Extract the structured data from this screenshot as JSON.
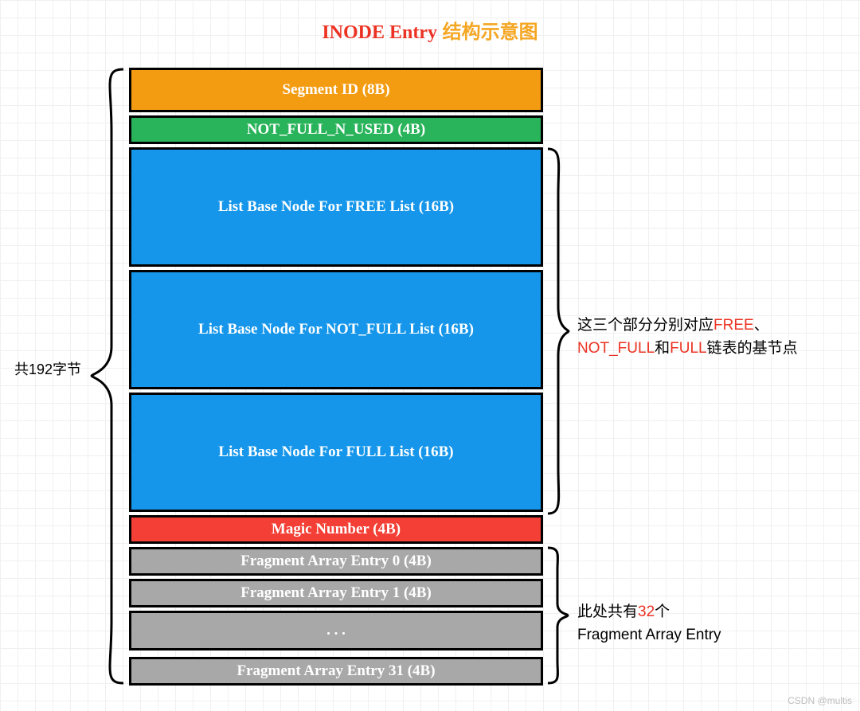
{
  "title": {
    "en": "INODE Entry",
    "cn": "结构示意图",
    "en_color": "#ec3323",
    "cn_color": "#f5a623"
  },
  "left_label": "共192字节",
  "blocks": {
    "segment_id": {
      "label": "Segment ID (8B)",
      "bg": "#f39c12",
      "h": 56
    },
    "not_full_n": {
      "label": "NOT_FULL_N_USED (4B)",
      "bg": "#29b35a",
      "h": 36
    },
    "free_list": {
      "label": "List Base Node For FREE List (16B)",
      "bg": "#1596ea",
      "h": 150
    },
    "notfull_list": {
      "label": "List Base Node For NOT_FULL List (16B)",
      "bg": "#1596ea",
      "h": 150
    },
    "full_list": {
      "label": "List Base Node For FULL List (16B)",
      "bg": "#1596ea",
      "h": 150
    },
    "magic": {
      "label": "Magic Number (4B)",
      "bg": "#f33f35",
      "h": 36
    },
    "frag0": {
      "label": "Fragment Array Entry 0 (4B)",
      "bg": "#a8a8a8",
      "h": 36
    },
    "frag1": {
      "label": "Fragment Array Entry 1 (4B)",
      "bg": "#a8a8a8",
      "h": 36
    },
    "fragdots": {
      "label": ". . .",
      "bg": "#a8a8a8",
      "h": 50
    },
    "frag31": {
      "label": "Fragment Array Entry 31 (4B)",
      "bg": "#a8a8a8",
      "h": 36
    }
  },
  "annot1": {
    "pre": "这三个部分分别对应",
    "w1": "FREE",
    "mid1": "、",
    "w2": "NOT_FULL",
    "mid2": "和",
    "w3": "FULL",
    "post": "链表的基节点",
    "hl_color": "#ec3323"
  },
  "annot2": {
    "pre": "此处共有",
    "num": "32",
    "mid": "个",
    "post": "Fragment Array Entry",
    "hl_color": "#ec3323"
  },
  "watermark": "CSDN @multis",
  "brace_color": "#000000"
}
